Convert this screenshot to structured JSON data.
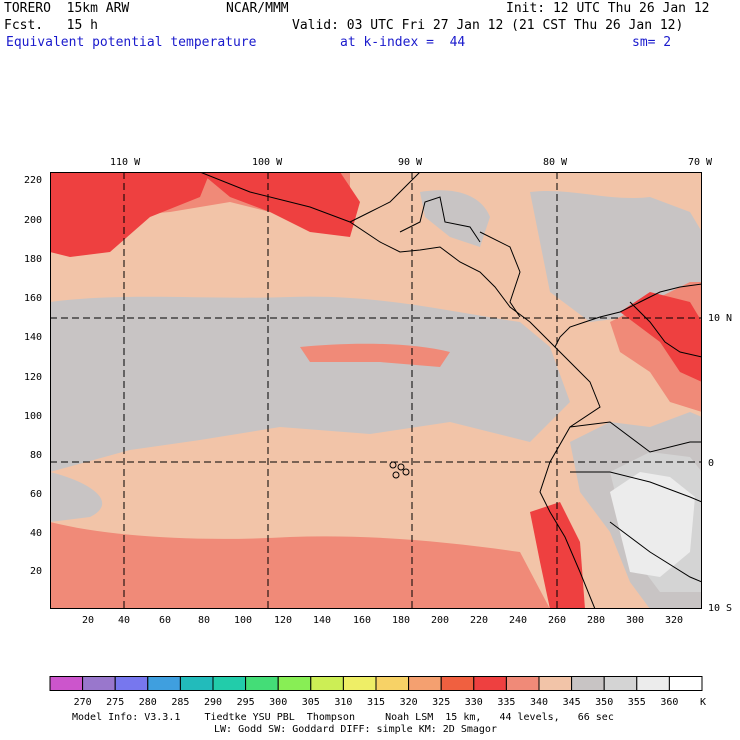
{
  "header": {
    "line1": {
      "model": "TORERO  15km ARW",
      "center": "NCAR/MMM",
      "init": "Init: 12 UTC Thu 26 Jan 12"
    },
    "line2": {
      "fcst": "Fcst.   15 h",
      "valid": "Valid: 03 UTC Fri 27 Jan 12 (21 CST Thu 26 Jan 12)"
    },
    "line3": {
      "field": "Equivalent potential temperature",
      "level": "at k-index =  44",
      "smooth": "sm= 2"
    }
  },
  "top_lon_labels": [
    "110 W",
    "100 W",
    "90 W",
    "80 W",
    "70 W"
  ],
  "right_lat_labels": [
    "10 N",
    "0",
    "10 S"
  ],
  "y_ticks": [
    "220",
    "200",
    "180",
    "160",
    "140",
    "120",
    "100",
    "80",
    "60",
    "40",
    "20"
  ],
  "x_ticks": [
    "20",
    "40",
    "60",
    "80",
    "100",
    "120",
    "140",
    "160",
    "180",
    "200",
    "220",
    "240",
    "260",
    "280",
    "300",
    "320"
  ],
  "colorbar": {
    "labels": [
      "270",
      "275",
      "280",
      "285",
      "290",
      "295",
      "300",
      "305",
      "310",
      "315",
      "320",
      "325",
      "330",
      "335",
      "340",
      "345",
      "350",
      "355",
      "360"
    ],
    "units": "K",
    "colors": [
      "#cc55cc",
      "#9977cc",
      "#7777ee",
      "#3f9fdf",
      "#22bbbb",
      "#22ccaa",
      "#44dd77",
      "#88ee55",
      "#ccee55",
      "#eeee66",
      "#f7d266",
      "#f4a070",
      "#f06040",
      "#ee4040",
      "#f08a78",
      "#f2c4a8",
      "#c8c4c4",
      "#d4d4d4",
      "#ececec",
      "#ffffff"
    ]
  },
  "footer": {
    "line1": "Model Info: V3.3.1    Tiedtke YSU PBL  Thompson     Noah LSM  15 km,   44 levels,   66 sec",
    "line2": "LW: Godd SW: Goddard DIFF: simple KM: 2D Smagor"
  }
}
